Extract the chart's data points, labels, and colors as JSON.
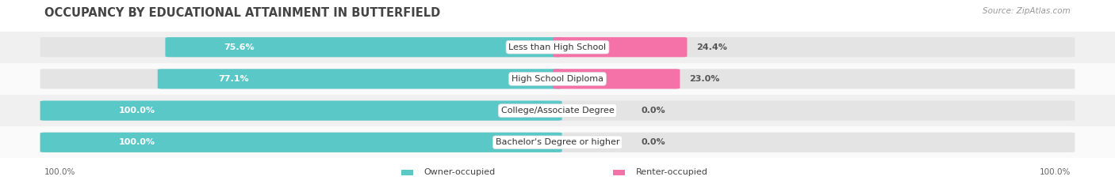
{
  "title": "OCCUPANCY BY EDUCATIONAL ATTAINMENT IN BUTTERFIELD",
  "source": "Source: ZipAtlas.com",
  "categories": [
    "Less than High School",
    "High School Diploma",
    "College/Associate Degree",
    "Bachelor's Degree or higher"
  ],
  "owner_values": [
    75.6,
    77.1,
    100.0,
    100.0
  ],
  "renter_values": [
    24.4,
    23.0,
    0.0,
    0.0
  ],
  "owner_color": "#5bc8c8",
  "renter_color": "#f472a8",
  "renter_color_light": "#f9adc8",
  "row_bg_colors": [
    "#f0f0f0",
    "#fafafa",
    "#f0f0f0",
    "#fafafa"
  ],
  "bar_bg_color": "#e4e4e4",
  "title_fontsize": 10.5,
  "label_fontsize": 8.0,
  "value_fontsize": 8.0,
  "tick_fontsize": 7.5,
  "source_fontsize": 7.5,
  "legend_fontsize": 8.0,
  "figsize": [
    14.06,
    2.33
  ],
  "dpi": 100
}
